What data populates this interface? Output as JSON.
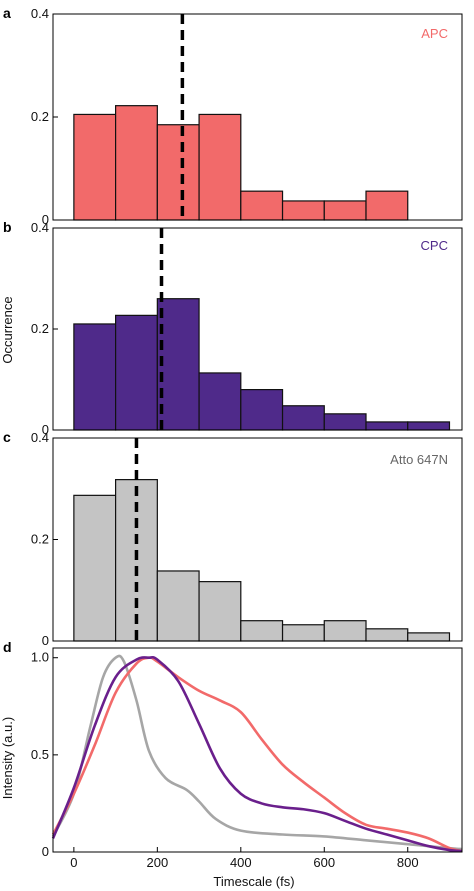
{
  "figure": {
    "shared_ylabel": "Occurrence",
    "xlabel": "Timescale (fs)",
    "xlim": [
      -50,
      930
    ],
    "x_ticks": [
      0,
      200,
      400,
      600,
      800
    ],
    "colors": {
      "APC": "#f26a6a",
      "CPC": "#4f2a8a",
      "Atto": "#c4c4c4",
      "mean_line": "#000000"
    }
  },
  "chart_data": [
    {
      "panel_label": "a",
      "type": "bar",
      "legend": "APC",
      "legend_color": "#f26a6a",
      "bar_color": "#f26a6a",
      "bin_edges": [
        0,
        100,
        200,
        300,
        400,
        500,
        600,
        700,
        800
      ],
      "values": [
        0.205,
        0.222,
        0.185,
        0.205,
        0.056,
        0.037,
        0.037,
        0.056
      ],
      "ylim": [
        0,
        0.4
      ],
      "y_ticks": [
        0,
        0.2,
        0.4
      ],
      "y_tick_labels": [
        "0",
        "0.2",
        "0.4"
      ],
      "mean_line_x": 260
    },
    {
      "panel_label": "b",
      "type": "bar",
      "legend": "CPC",
      "legend_color": "#4f2a8a",
      "bar_color": "#4f2a8a",
      "bin_edges": [
        0,
        100,
        200,
        300,
        400,
        500,
        600,
        700,
        800,
        900
      ],
      "values": [
        0.21,
        0.227,
        0.26,
        0.113,
        0.08,
        0.048,
        0.032,
        0.016,
        0.016
      ],
      "ylim": [
        0,
        0.4
      ],
      "y_ticks": [
        0,
        0.2,
        0.4
      ],
      "y_tick_labels": [
        "0",
        "0.2",
        "0.4"
      ],
      "mean_line_x": 210
    },
    {
      "panel_label": "c",
      "type": "bar",
      "legend": "Atto 647N",
      "legend_color": "#666666",
      "bar_color": "#c4c4c4",
      "bin_edges": [
        0,
        100,
        200,
        300,
        400,
        500,
        600,
        700,
        800,
        900
      ],
      "values": [
        0.287,
        0.318,
        0.138,
        0.117,
        0.04,
        0.032,
        0.04,
        0.024,
        0.016
      ],
      "ylim": [
        0,
        0.4
      ],
      "y_ticks": [
        0,
        0.2,
        0.4
      ],
      "y_tick_labels": [
        "0",
        "0.2",
        "0.4"
      ],
      "mean_line_x": 150
    },
    {
      "panel_label": "d",
      "type": "line",
      "ylabel": "Intensity (a.u.)",
      "ylim": [
        0,
        1.05
      ],
      "y_ticks": [
        0,
        0.5,
        1.0
      ],
      "y_tick_labels": [
        "0",
        "0.5",
        "1.0"
      ],
      "x_ticks": [
        0,
        200,
        400,
        600,
        800
      ],
      "x_tick_labels": [
        "0",
        "200",
        "400",
        "600",
        "800"
      ],
      "series": [
        {
          "color": "#a6a6a6",
          "x": [
            -50,
            0,
            40,
            70,
            100,
            120,
            150,
            180,
            220,
            270,
            300,
            340,
            400,
            500,
            600,
            700,
            800,
            900,
            930
          ],
          "y": [
            0.08,
            0.3,
            0.65,
            0.9,
            1.0,
            0.98,
            0.78,
            0.52,
            0.38,
            0.32,
            0.26,
            0.17,
            0.11,
            0.09,
            0.08,
            0.06,
            0.04,
            0.02,
            0.015
          ]
        },
        {
          "color": "#f26a6a",
          "x": [
            -50,
            0,
            50,
            100,
            150,
            180,
            200,
            250,
            300,
            350,
            400,
            450,
            500,
            550,
            600,
            650,
            700,
            750,
            800,
            850,
            900,
            930
          ],
          "y": [
            0.09,
            0.3,
            0.55,
            0.82,
            0.97,
            1.0,
            0.98,
            0.9,
            0.83,
            0.78,
            0.72,
            0.58,
            0.45,
            0.36,
            0.28,
            0.2,
            0.14,
            0.12,
            0.1,
            0.07,
            0.02,
            0.005
          ]
        },
        {
          "color": "#6a1f8c",
          "x": [
            -50,
            0,
            50,
            100,
            150,
            180,
            200,
            250,
            300,
            350,
            400,
            450,
            500,
            550,
            600,
            650,
            700,
            750,
            800,
            850,
            900,
            930
          ],
          "y": [
            0.07,
            0.33,
            0.65,
            0.9,
            0.99,
            1.0,
            0.99,
            0.88,
            0.66,
            0.43,
            0.3,
            0.25,
            0.23,
            0.22,
            0.2,
            0.16,
            0.12,
            0.09,
            0.06,
            0.03,
            0.01,
            0.005
          ]
        }
      ]
    }
  ]
}
